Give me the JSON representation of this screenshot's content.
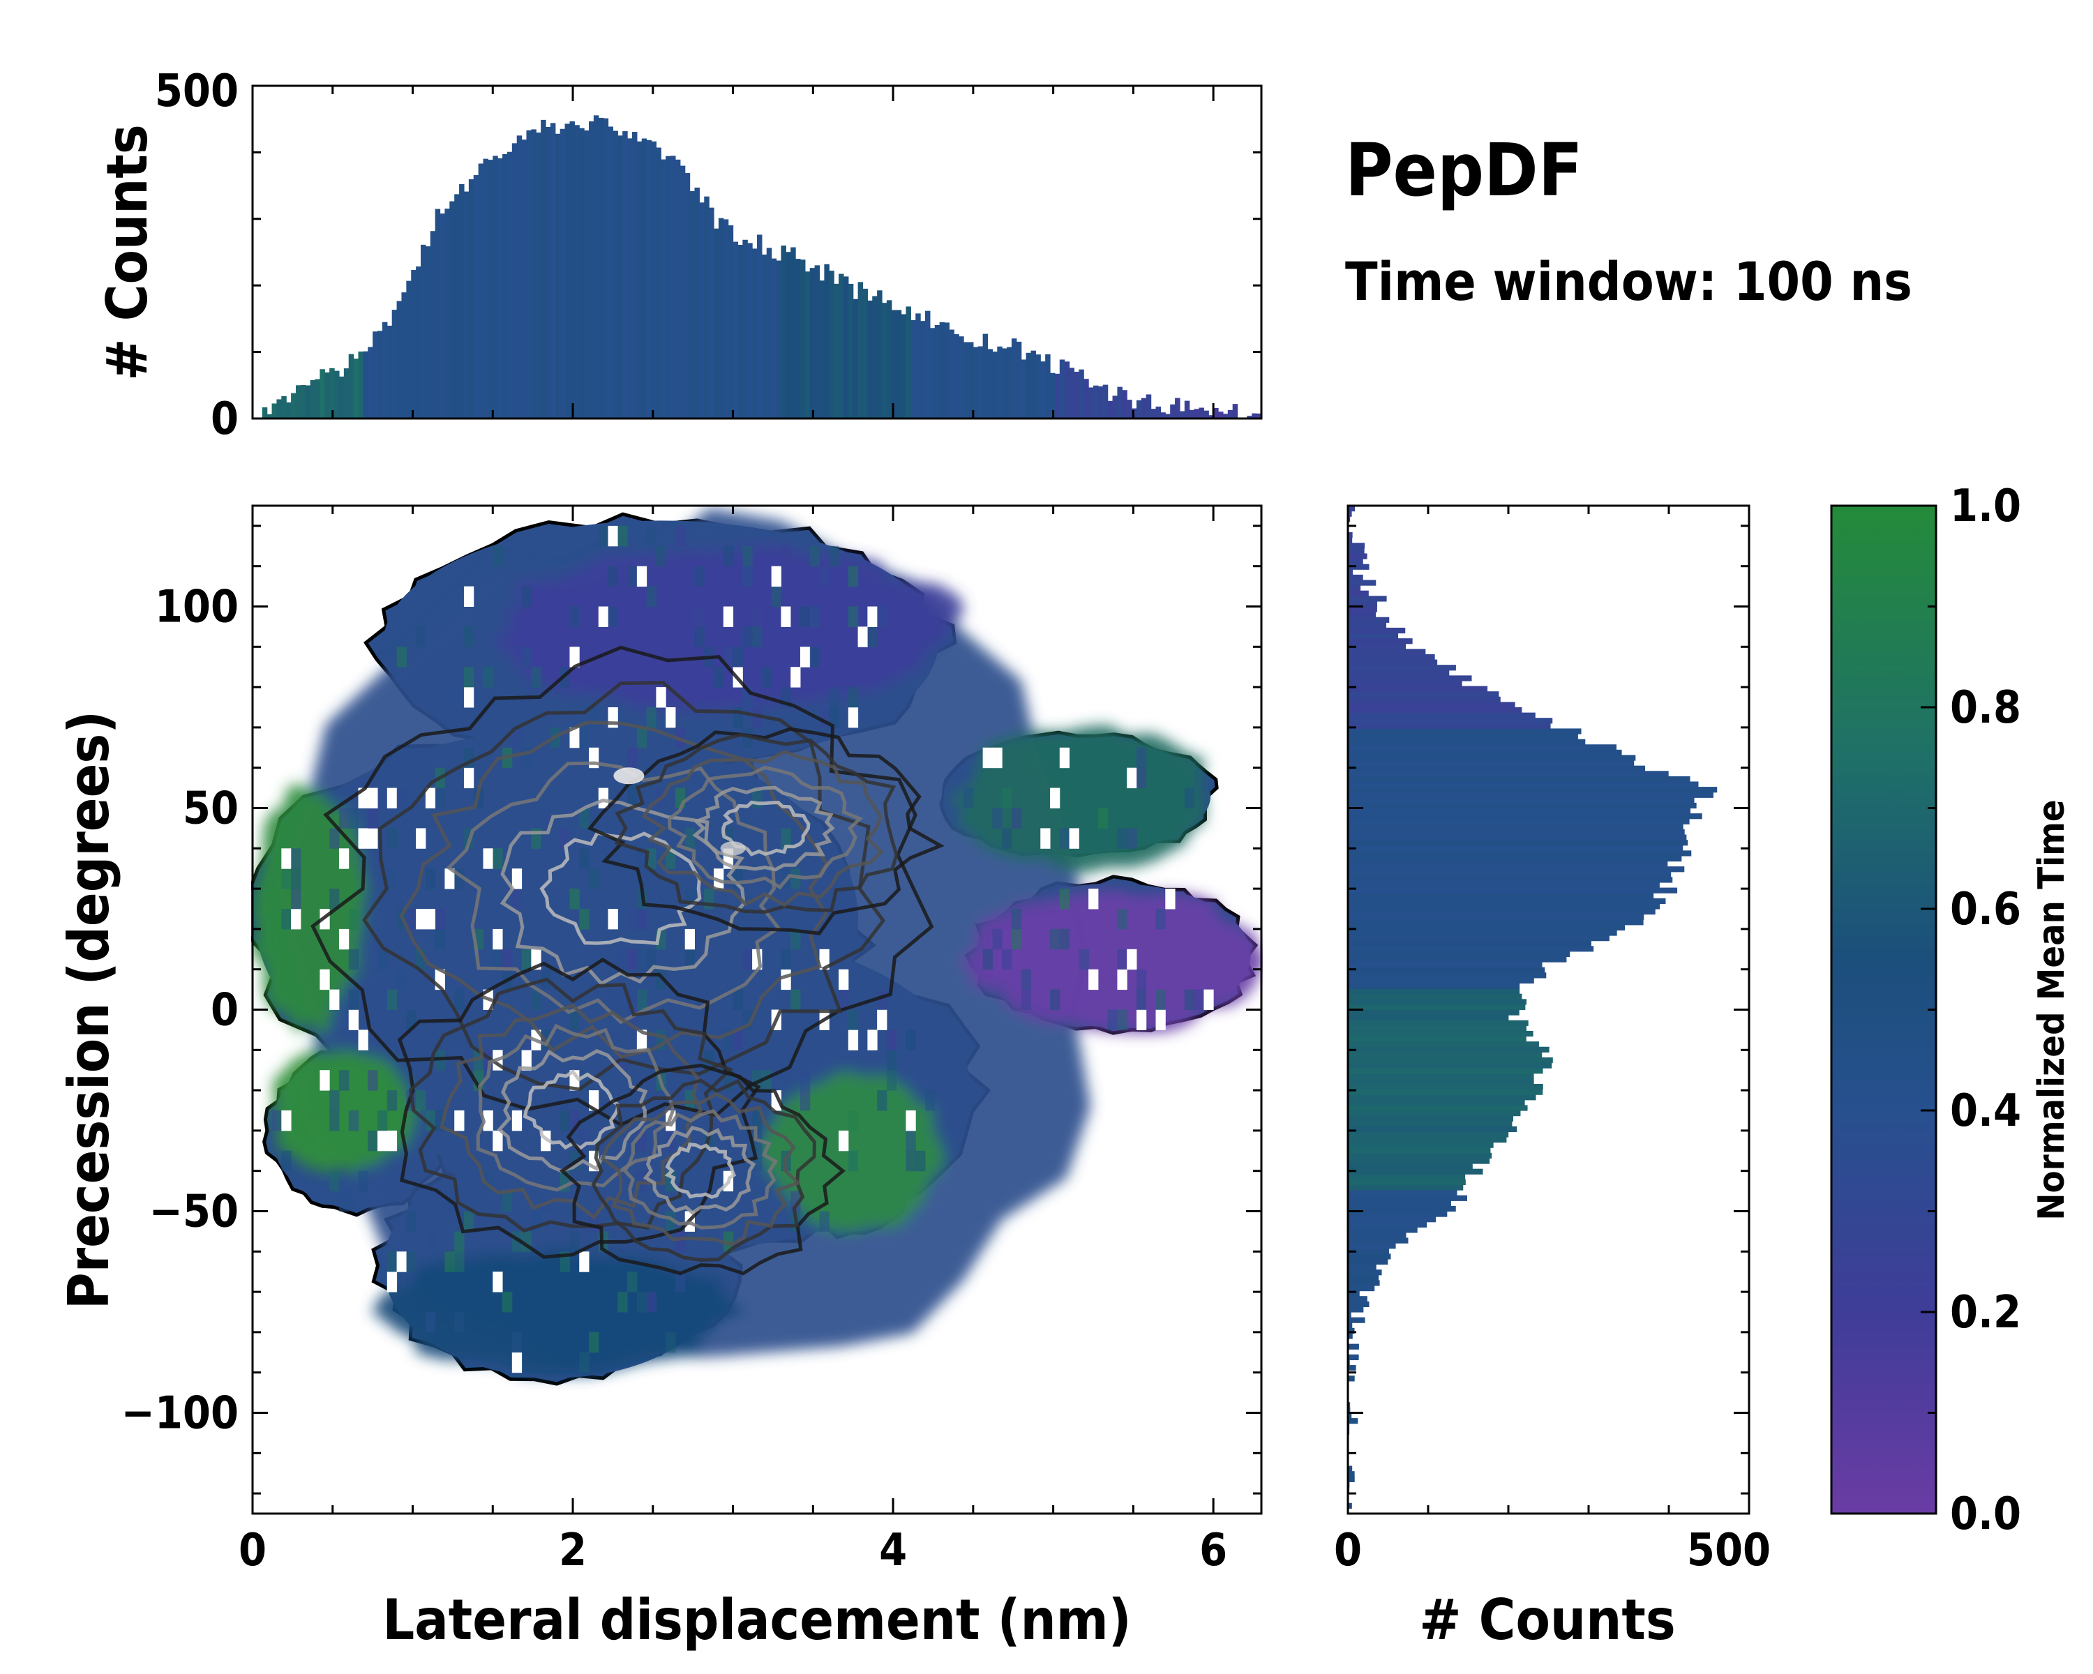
{
  "chart_data": [
    {
      "type": "heatmap",
      "name": "joint-2d-histogram",
      "xlabel": "Lateral displacement (nm)",
      "ylabel": "Precession (degrees)",
      "xlim": [
        0,
        6.3
      ],
      "ylim": [
        -125,
        125
      ],
      "xticks": [
        "0",
        "2",
        "4",
        "6"
      ],
      "yticks": [
        "−100",
        "−50",
        "0",
        "50",
        "100"
      ],
      "xtick_values": [
        0,
        2,
        4,
        6
      ],
      "ytick_values": [
        -100,
        -50,
        0,
        50,
        100
      ],
      "bin_width_x": 0.06,
      "bin_height_y": 5,
      "color_regions": [
        {
          "label": "blue core",
          "x": [
            0.3,
            5.4
          ],
          "y": [
            -95,
            120
          ],
          "color": "#2b4f8c"
        },
        {
          "label": "green left lobe",
          "x": [
            0,
            0.7
          ],
          "y": [
            -5,
            55
          ],
          "color": "#2e8b3c"
        },
        {
          "label": "green lower-left lobe",
          "x": [
            0.1,
            1.0
          ],
          "y": [
            -40,
            -10
          ],
          "color": "#2f8f3a"
        },
        {
          "label": "green lower-right lobe",
          "x": [
            3.2,
            4.3
          ],
          "y": [
            -55,
            -15
          ],
          "color": "#2e8b45"
        },
        {
          "label": "teal right arm",
          "x": [
            4.4,
            6.0
          ],
          "y": [
            35,
            70
          ],
          "color": "#1f6a60"
        },
        {
          "label": "purple right arm",
          "x": [
            4.5,
            6.3
          ],
          "y": [
            -5,
            30
          ],
          "color": "#6a3fa8"
        },
        {
          "label": "purple upper region",
          "x": [
            1.5,
            4.4
          ],
          "y": [
            75,
            115
          ],
          "color": "#3d3f9a"
        },
        {
          "label": "dark blue bottom lobe",
          "x": [
            0.8,
            3.0
          ],
          "y": [
            -90,
            -60
          ],
          "color": "#164a7a"
        }
      ]
    },
    {
      "type": "bar",
      "name": "top-marginal-histogram",
      "ylabel": "# Counts",
      "ylim": [
        0,
        500
      ],
      "yticks": [
        "0",
        "500"
      ],
      "ytick_values": [
        0,
        500
      ],
      "x_range": [
        0,
        6.3
      ],
      "bin_count": 210,
      "envelope_x": [
        0,
        0.15,
        0.3,
        0.5,
        0.7,
        0.85,
        0.95,
        1.05,
        1.15,
        1.25,
        1.45,
        1.65,
        1.85,
        2.05,
        2.25,
        2.45,
        2.65,
        2.8,
        2.9,
        3.1,
        3.3,
        3.5,
        3.7,
        3.9,
        4.1,
        4.3,
        4.5,
        4.7,
        4.9,
        5.1,
        5.3,
        5.5,
        5.7,
        5.9,
        6.05,
        6.2,
        6.3
      ],
      "envelope_y": [
        5,
        25,
        50,
        65,
        95,
        150,
        200,
        250,
        300,
        330,
        380,
        420,
        440,
        445,
        440,
        420,
        380,
        340,
        290,
        270,
        250,
        230,
        200,
        180,
        165,
        140,
        115,
        110,
        95,
        70,
        45,
        30,
        20,
        12,
        15,
        5,
        0
      ]
    },
    {
      "type": "bar",
      "orientation": "horizontal",
      "name": "right-marginal-histogram",
      "xlabel": "# Counts",
      "xlim": [
        0,
        500
      ],
      "xticks": [
        "0",
        "500"
      ],
      "xtick_values": [
        0,
        500
      ],
      "y_range": [
        -125,
        125
      ],
      "bin_count": 190,
      "envelope_y": [
        -88,
        -80,
        -70,
        -60,
        -50,
        -40,
        -30,
        -20,
        -10,
        0,
        10,
        20,
        30,
        40,
        50,
        55,
        60,
        70,
        80,
        90,
        100,
        110,
        118,
        125
      ],
      "envelope_x": [
        0,
        8,
        25,
        60,
        120,
        165,
        200,
        240,
        245,
        205,
        240,
        350,
        400,
        420,
        440,
        450,
        380,
        270,
        160,
        80,
        40,
        15,
        3,
        0
      ]
    },
    {
      "type": "colorbar",
      "name": "normalized-mean-time-colorbar",
      "label": "Normalized Mean Time",
      "range": [
        0,
        1
      ],
      "ticks": [
        "0.0",
        "0.2",
        "0.4",
        "0.6",
        "0.8",
        "1.0"
      ],
      "tick_values": [
        0,
        0.2,
        0.4,
        0.6,
        0.8,
        1.0
      ],
      "colormap": [
        "#6a3ca4",
        "#3f3d98",
        "#27508e",
        "#1c4f7c",
        "#1f7068",
        "#248b3a"
      ]
    }
  ],
  "header": {
    "title": "PepDF",
    "subtitle": "Time window: 100 ns"
  }
}
